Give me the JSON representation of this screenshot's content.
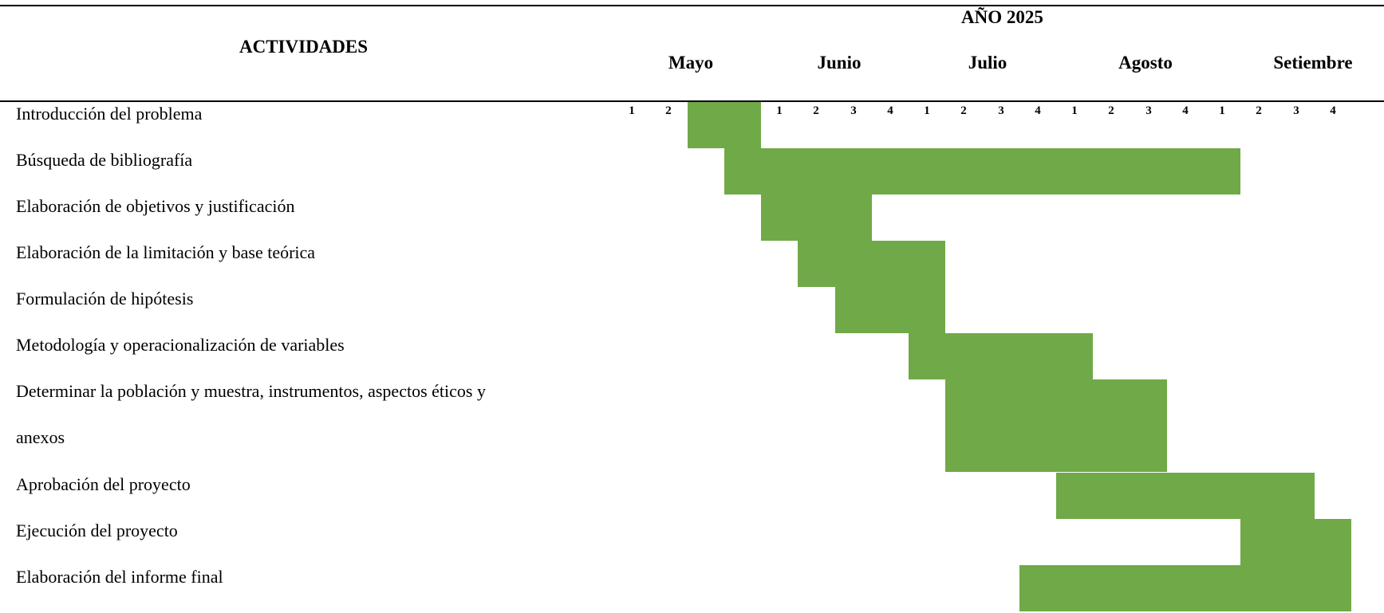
{
  "header": {
    "activities_label": "ACTIVIDADES",
    "year_label": "AÑO 2025",
    "months": [
      "Mayo",
      "Junio",
      "Julio",
      "Agosto",
      "Setiembre"
    ],
    "weeks": [
      "1",
      "2",
      "3",
      "4"
    ]
  },
  "activities": [
    "Introducción del problema",
    "Búsqueda de bibliografía",
    "Elaboración de objetivos y justificación",
    "Elaboración de la limitación y base teórica",
    "Formulación de hipótesis",
    "Metodología y operacionalización de variables",
    "Determinar la población y muestra, instrumentos, aspectos éticos y",
    "anexos",
    "Aprobación del proyecto",
    "Ejecución del proyecto",
    "Elaboración del informe final"
  ],
  "bar_color": "#70a947",
  "schedule": [
    {
      "activity": "Introducción del problema",
      "start_week": 3,
      "end_week": 4
    },
    {
      "activity": "Búsqueda de bibliografía",
      "start_week": 4,
      "end_week": 17
    },
    {
      "activity": "Elaboración de objetivos y justificación",
      "start_week": 5,
      "end_week": 7
    },
    {
      "activity": "Elaboración de la limitación y base teórica",
      "start_week": 6,
      "end_week": 9
    },
    {
      "activity": "Formulación de hipótesis",
      "start_week": 7,
      "end_week": 9
    },
    {
      "activity": "Metodología y operacionalización de variables",
      "start_week": 9,
      "end_week": 13
    },
    {
      "activity": "Determinar la población y muestra, instrumentos, aspectos éticos y anexos",
      "start_week": 10,
      "end_week": 15
    },
    {
      "activity": "Aprobación del proyecto",
      "start_week": 13,
      "end_week": 19
    },
    {
      "activity": "Ejecución del proyecto",
      "start_week": 18,
      "end_week": 20
    },
    {
      "activity": "Elaboración del informe final",
      "start_week": 12,
      "end_week": 20
    }
  ]
}
